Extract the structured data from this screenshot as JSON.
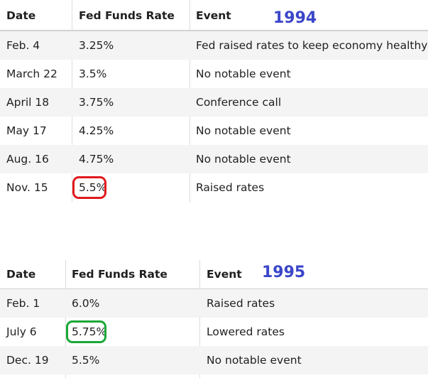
{
  "table_1994": {
    "year_label": "1994",
    "headers": [
      "Date",
      "Fed Funds Rate",
      "Event"
    ],
    "rows": [
      [
        "Feb. 4",
        "3.25%",
        "Fed raised rates to keep economy healthy"
      ],
      [
        "March 22",
        "3.5%",
        "No notable event"
      ],
      [
        "April 18",
        "3.75%",
        "Conference call"
      ],
      [
        "May 17",
        "4.25%",
        "No notable event"
      ],
      [
        "Aug. 16",
        "4.75%",
        "No notable event"
      ],
      [
        "Nov. 15",
        "5.5%",
        "Raised rates"
      ]
    ],
    "highlight": {
      "row": 5,
      "color": "#e0191e"
    }
  },
  "table_1995": {
    "year_label": "1995",
    "headers": [
      "Date",
      "Fed Funds Rate",
      "Event"
    ],
    "rows": [
      [
        "Feb. 1",
        "6.0%",
        "Raised rates"
      ],
      [
        "July 6",
        "5.75%",
        "Lowered rates"
      ],
      [
        "Dec. 19",
        "5.5%",
        "No notable event"
      ]
    ],
    "highlight": {
      "row": 1,
      "color": "#19a837"
    }
  }
}
